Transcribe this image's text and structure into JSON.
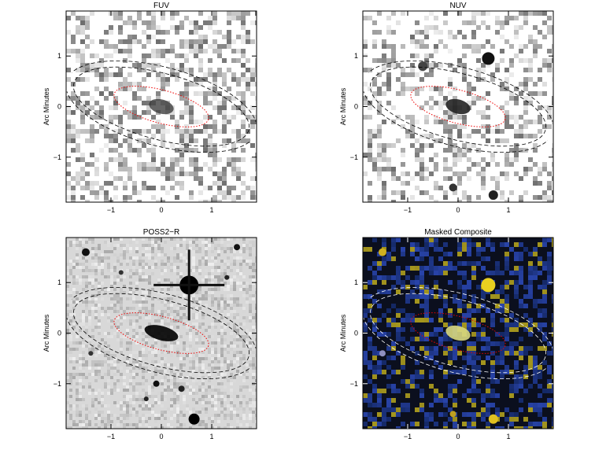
{
  "axes": {
    "xlim": [
      -1.89,
      1.89
    ],
    "ylim": [
      -1.89,
      1.89
    ],
    "xticks": [
      {
        "value": -1,
        "label": "−1"
      },
      0,
      1
    ],
    "yticks": [
      {
        "value": -1,
        "label": "−1"
      },
      0,
      1
    ],
    "ylabel": "Arc Minutes"
  },
  "panels": [
    {
      "title": "FUV",
      "style": "fuv"
    },
    {
      "title": "NUV",
      "style": "nuv"
    },
    {
      "title": "POSS2−R",
      "style": "poss"
    },
    {
      "title": "Masked Composite",
      "style": "composite"
    }
  ]
}
